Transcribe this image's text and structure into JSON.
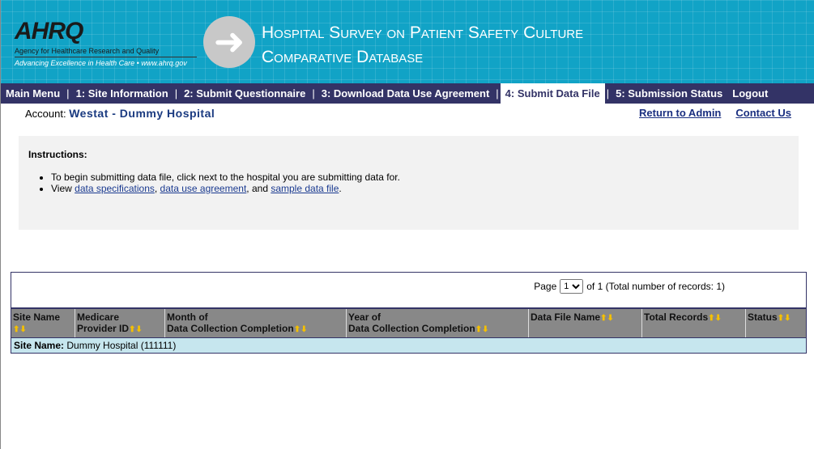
{
  "header": {
    "logo_text": "AHRQ",
    "agency": "Agency for Healthcare Research and Quality",
    "tagline": "Advancing Excellence in Health Care • www.ahrq.gov",
    "title_line1": "Hospital Survey on Patient Safety Culture",
    "title_line2": "Comparative Database"
  },
  "nav": [
    "Main Menu",
    "1: Site Information",
    "2: Submit Questionnaire",
    "3: Download Data Use Agreement",
    "4: Submit Data File",
    "5: Submission Status",
    "Logout"
  ],
  "account": {
    "label": "Account:",
    "name": "Westat - Dummy Hospital"
  },
  "links": {
    "return": "Return to Admin",
    "contact": "Contact Us"
  },
  "instructions": {
    "heading": "Instructions:",
    "line1": "To begin submitting data file, click next to the hospital you are submitting data for.",
    "view": "View ",
    "spec": "data specifications",
    "comma": ", ",
    "dua": "data use agreement",
    "and": ", and ",
    "sample": "sample data file",
    "end": "."
  },
  "pager": {
    "label": "Page",
    "value": "1",
    "of": "of 1 (Total number of records: 1)"
  },
  "columns": [
    {
      "l1": "Site Name",
      "l2": ""
    },
    {
      "l1": "Medicare",
      "l2": "Provider ID"
    },
    {
      "l1": "Month of",
      "l2": "Data Collection Completion"
    },
    {
      "l1": "Year of",
      "l2": "Data Collection Completion"
    },
    {
      "l1": "Data File Name",
      "l2": ""
    },
    {
      "l1": "Total Records",
      "l2": ""
    },
    {
      "l1": "Status",
      "l2": ""
    }
  ],
  "group_row": {
    "label": "Site Name:",
    "value": "Dummy Hospital (111111)"
  }
}
